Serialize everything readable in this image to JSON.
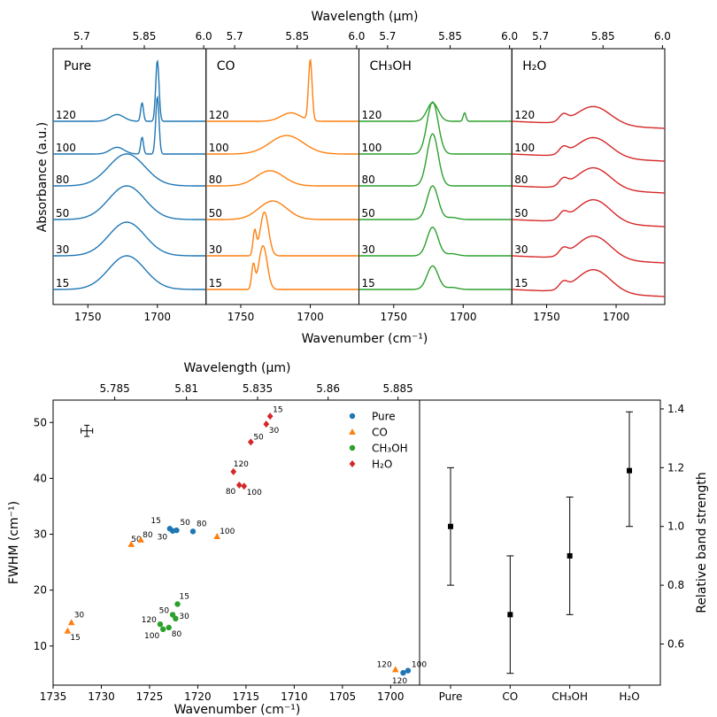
{
  "colors": {
    "pure": "#1f77b4",
    "co": "#ff7f0e",
    "ch3oh": "#2ca02c",
    "h2o": "#d62728",
    "black": "#000000"
  },
  "chart_data": [
    {
      "type": "line",
      "title": "",
      "top_axis_label": "Wavelength (μm)",
      "top_ticks": [
        "5.7",
        "5.85",
        "6.0"
      ],
      "top_tick_values_um": [
        5.7,
        5.85,
        6.0
      ],
      "xlabel": "Wavenumber (cm⁻¹)",
      "ylabel": "Absorbance (a.u.)",
      "x_ticks": [
        "1750",
        "1700"
      ],
      "x_tick_values": [
        1750,
        1700
      ],
      "xlim": [
        1775,
        1665
      ],
      "panels": [
        {
          "label": "Pure",
          "color_key": "pure",
          "temperatures": [
            "15",
            "30",
            "50",
            "80",
            "100",
            "120"
          ],
          "series": [
            {
              "temp": "15",
              "peaks": [
                {
                  "c": 1722,
                  "w": 13,
                  "a": 1.0
                }
              ]
            },
            {
              "temp": "30",
              "peaks": [
                {
                  "c": 1722,
                  "w": 13,
                  "a": 1.0
                }
              ]
            },
            {
              "temp": "50",
              "peaks": [
                {
                  "c": 1722,
                  "w": 13,
                  "a": 1.0
                }
              ]
            },
            {
              "temp": "80",
              "peaks": [
                {
                  "c": 1722,
                  "w": 13,
                  "a": 0.95
                }
              ]
            },
            {
              "temp": "100",
              "peaks": [
                {
                  "c": 1700,
                  "w": 1.2,
                  "a": 1.7
                },
                {
                  "c": 1711,
                  "w": 1.0,
                  "a": 0.5
                },
                {
                  "c": 1729,
                  "w": 5,
                  "a": 0.2
                }
              ]
            },
            {
              "temp": "120",
              "peaks": [
                {
                  "c": 1700,
                  "w": 1.2,
                  "a": 1.8
                },
                {
                  "c": 1711,
                  "w": 1.0,
                  "a": 0.55
                },
                {
                  "c": 1729,
                  "w": 5,
                  "a": 0.2
                }
              ]
            }
          ]
        },
        {
          "label": "CO",
          "color_key": "co",
          "temperatures": [
            "15",
            "30",
            "50",
            "80",
            "100",
            "120"
          ],
          "series": [
            {
              "temp": "15",
              "peaks": [
                {
                  "c": 1734,
                  "w": 3,
                  "a": 1.3
                },
                {
                  "c": 1741,
                  "w": 1.2,
                  "a": 0.7
                }
              ]
            },
            {
              "temp": "30",
              "peaks": [
                {
                  "c": 1733,
                  "w": 3,
                  "a": 1.3
                },
                {
                  "c": 1740,
                  "w": 1.2,
                  "a": 0.7
                }
              ]
            },
            {
              "temp": "50",
              "peaks": [
                {
                  "c": 1727,
                  "w": 10,
                  "a": 0.55
                }
              ]
            },
            {
              "temp": "80",
              "peaks": [
                {
                  "c": 1729,
                  "w": 10,
                  "a": 0.45
                }
              ]
            },
            {
              "temp": "100",
              "peaks": [
                {
                  "c": 1717,
                  "w": 12,
                  "a": 0.55
                }
              ]
            },
            {
              "temp": "120",
              "peaks": [
                {
                  "c": 1700,
                  "w": 1.3,
                  "a": 1.8
                },
                {
                  "c": 1714,
                  "w": 7,
                  "a": 0.25
                }
              ]
            }
          ]
        },
        {
          "label": "CH₃OH",
          "color_key": "ch3oh",
          "temperatures": [
            "15",
            "30",
            "50",
            "80",
            "100",
            "120"
          ],
          "series": [
            {
              "temp": "15",
              "peaks": [
                {
                  "c": 1722,
                  "w": 4,
                  "a": 0.7
                },
                {
                  "c": 1708,
                  "w": 4,
                  "a": 0.06
                }
              ]
            },
            {
              "temp": "30",
              "peaks": [
                {
                  "c": 1722,
                  "w": 4,
                  "a": 0.85
                },
                {
                  "c": 1708,
                  "w": 4,
                  "a": 0.06
                }
              ]
            },
            {
              "temp": "50",
              "peaks": [
                {
                  "c": 1722,
                  "w": 4,
                  "a": 1.0
                },
                {
                  "c": 1708,
                  "w": 4,
                  "a": 0.06
                }
              ]
            },
            {
              "temp": "80",
              "peaks": [
                {
                  "c": 1722,
                  "w": 4,
                  "a": 1.55
                }
              ]
            },
            {
              "temp": "100",
              "peaks": [
                {
                  "c": 1722,
                  "w": 4,
                  "a": 1.55
                }
              ]
            },
            {
              "temp": "120",
              "peaks": [
                {
                  "c": 1722,
                  "w": 4,
                  "a": 0.55
                },
                {
                  "c": 1699,
                  "w": 1,
                  "a": 0.25
                }
              ]
            }
          ]
        },
        {
          "label": "H₂O",
          "color_key": "h2o",
          "temperatures": [
            "15",
            "30",
            "50",
            "80",
            "100",
            "120"
          ],
          "series": [
            {
              "temp": "15",
              "peaks": [
                {
                  "c": 1716,
                  "w": 12,
                  "a": 0.7
                },
                {
                  "c": 1738,
                  "w": 3,
                  "a": 0.2
                }
              ]
            },
            {
              "temp": "30",
              "peaks": [
                {
                  "c": 1716,
                  "w": 12,
                  "a": 0.7
                },
                {
                  "c": 1738,
                  "w": 3,
                  "a": 0.2
                }
              ]
            },
            {
              "temp": "50",
              "peaks": [
                {
                  "c": 1716,
                  "w": 12,
                  "a": 0.7
                },
                {
                  "c": 1738,
                  "w": 3,
                  "a": 0.2
                }
              ]
            },
            {
              "temp": "80",
              "peaks": [
                {
                  "c": 1716,
                  "w": 12,
                  "a": 0.65
                },
                {
                  "c": 1738,
                  "w": 3,
                  "a": 0.2
                }
              ]
            },
            {
              "temp": "100",
              "peaks": [
                {
                  "c": 1716,
                  "w": 12,
                  "a": 0.6
                },
                {
                  "c": 1738,
                  "w": 3,
                  "a": 0.2
                }
              ]
            },
            {
              "temp": "120",
              "peaks": [
                {
                  "c": 1716,
                  "w": 12,
                  "a": 0.55
                },
                {
                  "c": 1738,
                  "w": 3,
                  "a": 0.2
                }
              ]
            }
          ]
        }
      ]
    },
    {
      "type": "scatter",
      "top_axis_label": "Wavelength (μm)",
      "top_ticks": [
        "5.785",
        "5.81",
        "5.835",
        "5.86",
        "5.885"
      ],
      "top_tick_values_um": [
        5.785,
        5.81,
        5.835,
        5.86,
        5.885
      ],
      "xlabel": "Wavenumber (cm⁻¹)",
      "ylabel": "FWHM (cm⁻¹)",
      "xlim": [
        1735,
        1697
      ],
      "ylim": [
        3,
        54
      ],
      "x_ticks": [
        "1735",
        "1730",
        "1725",
        "1720",
        "1715",
        "1710",
        "1705",
        "1700"
      ],
      "x_tick_values": [
        1735,
        1730,
        1725,
        1720,
        1715,
        1710,
        1705,
        1700
      ],
      "y_ticks": [
        "10",
        "20",
        "30",
        "40",
        "50"
      ],
      "y_tick_values": [
        10,
        20,
        30,
        40,
        50
      ],
      "legend": [
        "Pure",
        "CO",
        "CH₃OH",
        "H₂O"
      ],
      "error_bar_sample": {
        "x": 1731.5,
        "y": 48.5,
        "xerr": 0.6,
        "yerr": 1.0
      },
      "series": [
        {
          "name": "Pure",
          "color_key": "pure",
          "marker": "circle",
          "points": [
            {
              "label": "15",
              "x": 1722.9,
              "y": 31.0
            },
            {
              "label": "30",
              "x": 1722.6,
              "y": 30.6
            },
            {
              "label": "50",
              "x": 1722.2,
              "y": 30.7
            },
            {
              "label": "80",
              "x": 1720.5,
              "y": 30.5
            },
            {
              "label": "100",
              "x": 1698.2,
              "y": 5.6
            },
            {
              "label": "120",
              "x": 1698.7,
              "y": 5.2
            }
          ]
        },
        {
          "name": "CO",
          "color_key": "co",
          "marker": "triangle",
          "points": [
            {
              "label": "15",
              "x": 1733.5,
              "y": 12.7
            },
            {
              "label": "30",
              "x": 1733.1,
              "y": 14.2
            },
            {
              "label": "50",
              "x": 1726.9,
              "y": 28.2
            },
            {
              "label": "80",
              "x": 1725.9,
              "y": 29.0
            },
            {
              "label": "100",
              "x": 1718.0,
              "y": 29.6
            },
            {
              "label": "120",
              "x": 1699.5,
              "y": 5.8
            }
          ]
        },
        {
          "name": "CH₃OH",
          "color_key": "ch3oh",
          "marker": "circle",
          "points": [
            {
              "label": "15",
              "x": 1722.1,
              "y": 17.5
            },
            {
              "label": "30",
              "x": 1722.3,
              "y": 14.9
            },
            {
              "label": "50",
              "x": 1722.6,
              "y": 15.6
            },
            {
              "label": "80",
              "x": 1723.0,
              "y": 13.3
            },
            {
              "label": "100",
              "x": 1723.6,
              "y": 13.0
            },
            {
              "label": "120",
              "x": 1723.9,
              "y": 13.9
            }
          ]
        },
        {
          "name": "H₂O",
          "color_key": "h2o",
          "marker": "diamond",
          "points": [
            {
              "label": "15",
              "x": 1712.5,
              "y": 51.1
            },
            {
              "label": "30",
              "x": 1712.9,
              "y": 49.7
            },
            {
              "label": "50",
              "x": 1714.5,
              "y": 46.5
            },
            {
              "label": "80",
              "x": 1715.7,
              "y": 38.8
            },
            {
              "label": "100",
              "x": 1715.2,
              "y": 38.6
            },
            {
              "label": "120",
              "x": 1716.3,
              "y": 41.2
            }
          ]
        }
      ]
    },
    {
      "type": "scatter",
      "ylabel": "Relative band strength",
      "ylim": [
        0.46,
        1.43
      ],
      "y_ticks": [
        "0.6",
        "0.8",
        "1.0",
        "1.2",
        "1.4"
      ],
      "y_tick_values": [
        0.6,
        0.8,
        1.0,
        1.2,
        1.4
      ],
      "categories": [
        "Pure",
        "CO",
        "CH₃OH",
        "H₂O"
      ],
      "values": [
        1.0,
        0.7,
        0.9,
        1.19
      ],
      "errors_low": [
        0.8,
        0.5,
        0.7,
        1.0
      ],
      "errors_high": [
        1.2,
        0.9,
        1.1,
        1.39
      ]
    }
  ]
}
